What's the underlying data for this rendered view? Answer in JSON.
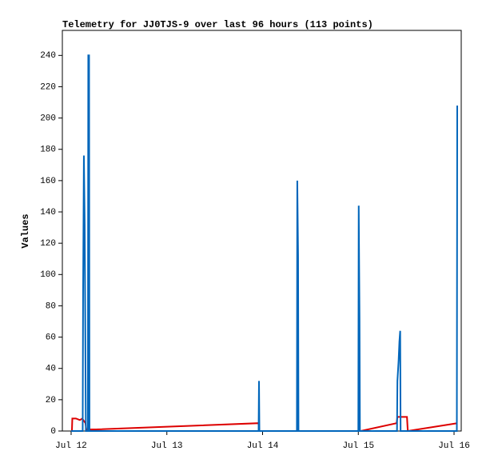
{
  "chart_data": {
    "type": "line",
    "title": "Telemetry for JJ0TJS-9 over last 96 hours (113 points)",
    "y_label": "Values",
    "xlim": [
      -2.2,
      97.8
    ],
    "xticks": [
      {
        "value": 0,
        "label": "Jul 12"
      },
      {
        "value": 24,
        "label": "Jul 13"
      },
      {
        "value": 48,
        "label": "Jul 14"
      },
      {
        "value": 72,
        "label": "Jul 15"
      },
      {
        "value": 96,
        "label": "Jul 16"
      }
    ],
    "ylim": [
      0,
      256
    ],
    "yticks": [
      0,
      20,
      40,
      60,
      80,
      100,
      120,
      140,
      160,
      180,
      200,
      220,
      240
    ],
    "series": [
      {
        "color": "#dd0000",
        "x": [
          0.2,
          0.3,
          1.2,
          2.2,
          2.8,
          3.6,
          3.8,
          6.2,
          47.0,
          47.2,
          72.6,
          81.6,
          81.8,
          84.2,
          84.4,
          96.8
        ],
        "values": [
          0,
          8,
          8,
          7,
          8,
          5,
          1,
          1,
          5,
          0,
          0,
          5,
          9,
          9,
          0,
          5
        ]
      },
      {
        "color": "#0066bb",
        "x": [
          0,
          2.9,
          3.0,
          3.2,
          3.4,
          3.6,
          3.7,
          4.2,
          4.3,
          4.5,
          4.6,
          47.0,
          47.1,
          47.2,
          56.6,
          56.7,
          56.9,
          57.0,
          72.0,
          72.1,
          72.3,
          72.4,
          81.7,
          81.8,
          82.1,
          82.3,
          82.5,
          82.6,
          96.7,
          96.8
        ],
        "values": [
          0,
          0,
          88,
          176,
          132,
          44,
          0,
          0,
          240,
          240,
          0,
          0,
          32,
          0,
          0,
          160,
          112,
          0,
          0,
          144,
          72,
          0,
          0,
          32,
          45,
          57,
          64,
          0,
          0,
          208
        ]
      }
    ]
  }
}
